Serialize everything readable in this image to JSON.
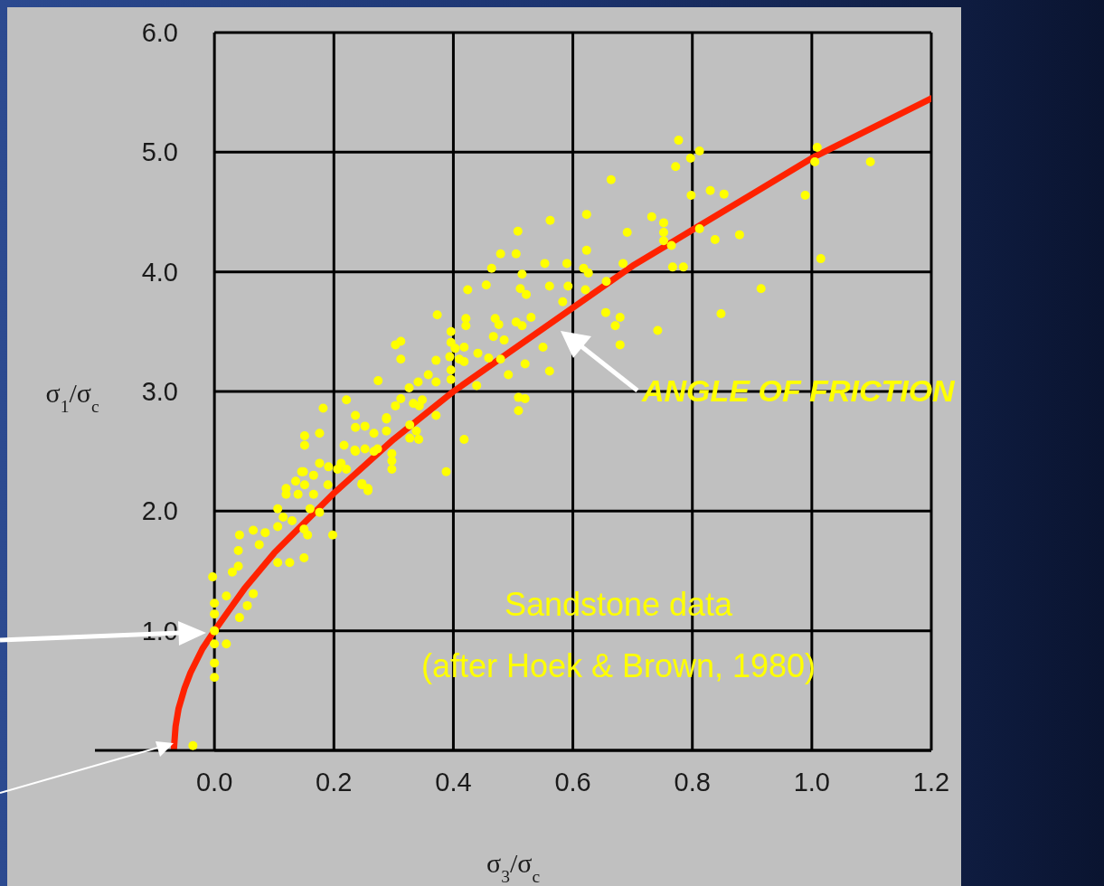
{
  "chart_data": {
    "type": "scatter",
    "xlabel": "σ$_{3}$/σ$_{c}$",
    "ylabel": "σ$_{1}$/σ$_{c}$",
    "xlim": [
      -0.2,
      1.2
    ],
    "xticks": [
      {
        "value": 0,
        "label": "0.0"
      },
      0.2,
      0.4,
      0.6,
      0.8,
      {
        "value": 1,
        "label": "1.0"
      },
      1.2
    ],
    "ylim": [
      0,
      6
    ],
    "yticks": [
      {
        "value": 0,
        "label": null
      },
      {
        "value": 1,
        "label": "1.0"
      },
      {
        "value": 2,
        "label": "2.0"
      },
      {
        "value": 3,
        "label": "3.0"
      },
      {
        "value": 4,
        "label": "4.0"
      },
      {
        "value": 5,
        "label": "5.0"
      },
      {
        "value": 6,
        "label": "6.0"
      }
    ],
    "grid": true,
    "marker": "circle",
    "series": [
      {
        "color": "#ffff00",
        "x": [
          -0.036,
          -0.003,
          0,
          0,
          0,
          0,
          0,
          0,
          0.02,
          0.02,
          0.042,
          0.055,
          0.065,
          0.03,
          0.04,
          0.04,
          0.042,
          0.065,
          0.075,
          0.085,
          0.106,
          0.115,
          0.126,
          0.106,
          0.15,
          0.156,
          0.15,
          0.13,
          0.106,
          0.12,
          0.14,
          0.151,
          0.136,
          0.149,
          0.166,
          0.176,
          0.191,
          0.19,
          0.166,
          0.16,
          0.176,
          0.198,
          0.151,
          0.151,
          0.176,
          0.182,
          0.206,
          0.221,
          0.236,
          0.236,
          0.217,
          0.236,
          0.247,
          0.257,
          0.267,
          0.288,
          0.297,
          0.562,
          0.508,
          0.479,
          0.505,
          0.464,
          0.553,
          0.59,
          0.515,
          0.455,
          0.424,
          0.512,
          0.522,
          0.561,
          0.592,
          0.583,
          0.373,
          0.421,
          0.421,
          0.47,
          0.476,
          0.505,
          0.515,
          0.53,
          0.312,
          0.303,
          0.312,
          0.396,
          0.396,
          0.403,
          0.418,
          0.441,
          0.459,
          0.467,
          0.485,
          0.371,
          0.394,
          0.41,
          0.418,
          0.479,
          0.55,
          0.52,
          0.561,
          0.492,
          0.396,
          0.396,
          0.358,
          0.274,
          0.341,
          0.371,
          0.326,
          0.439,
          0.509,
          0.52,
          0.509,
          0.312,
          0.303,
          0.333,
          0.348,
          0.343,
          0.371,
          0.288,
          0.252,
          0.267,
          0.288,
          0.327,
          0.338,
          0.327,
          0.342,
          0.418,
          0.235,
          0.252,
          0.273,
          0.297,
          0.297,
          0.388,
          0.146,
          0.212,
          0.221,
          0.247,
          0.257,
          0.12,
          0.777,
          0.812,
          0.797,
          0.772,
          1.009,
          1.005,
          1.098,
          0.664,
          0.798,
          0.83,
          0.853,
          0.989,
          0.623,
          0.732,
          0.691,
          0.752,
          0.752,
          0.752,
          0.765,
          0.812,
          0.838,
          0.879,
          1.015,
          0.623,
          0.618,
          0.626,
          0.684,
          0.767,
          0.785,
          0.621,
          0.656,
          0.655,
          0.679,
          0.671,
          0.742,
          0.679,
          0.848,
          0.915
        ],
        "values": [
          0.04,
          1.45,
          1.23,
          1.14,
          1.0,
          0.89,
          0.73,
          0.61,
          0.89,
          1.29,
          1.11,
          1.21,
          1.31,
          1.49,
          1.54,
          1.67,
          1.8,
          1.84,
          1.72,
          1.82,
          1.87,
          1.95,
          1.57,
          1.57,
          1.61,
          1.8,
          1.85,
          1.92,
          2.02,
          2.14,
          2.14,
          2.22,
          2.25,
          2.33,
          2.3,
          2.4,
          2.37,
          2.22,
          2.14,
          2.02,
          1.99,
          1.8,
          2.63,
          2.55,
          2.65,
          2.86,
          2.35,
          2.93,
          2.8,
          2.7,
          2.55,
          2.5,
          2.22,
          2.17,
          2.5,
          2.78,
          2.48,
          4.43,
          4.34,
          4.15,
          4.15,
          4.03,
          4.07,
          4.07,
          3.98,
          3.89,
          3.85,
          3.86,
          3.81,
          3.88,
          3.88,
          3.75,
          3.64,
          3.61,
          3.55,
          3.61,
          3.56,
          3.58,
          3.55,
          3.62,
          3.42,
          3.39,
          3.27,
          3.5,
          3.41,
          3.36,
          3.37,
          3.32,
          3.28,
          3.46,
          3.43,
          3.26,
          3.29,
          3.27,
          3.25,
          3.27,
          3.37,
          3.23,
          3.17,
          3.14,
          3.18,
          3.1,
          3.14,
          3.09,
          3.08,
          3.08,
          3.03,
          3.05,
          2.95,
          2.94,
          2.84,
          2.94,
          2.88,
          2.9,
          2.93,
          2.88,
          2.8,
          2.77,
          2.71,
          2.65,
          2.67,
          2.72,
          2.67,
          2.61,
          2.6,
          2.6,
          2.51,
          2.52,
          2.52,
          2.42,
          2.35,
          2.33,
          2.33,
          2.4,
          2.35,
          2.23,
          2.19,
          2.19,
          5.1,
          5.01,
          4.95,
          4.88,
          5.04,
          4.92,
          4.92,
          4.77,
          4.64,
          4.68,
          4.65,
          4.64,
          4.48,
          4.46,
          4.33,
          4.41,
          4.33,
          4.26,
          4.22,
          4.36,
          4.27,
          4.31,
          4.11,
          4.18,
          4.03,
          3.99,
          4.07,
          4.04,
          4.04,
          3.85,
          3.92,
          3.66,
          3.62,
          3.55,
          3.51,
          3.39,
          3.65,
          3.86
        ]
      },
      {
        "type": "line",
        "color": "#ff2200",
        "marker": "none",
        "x": [
          -0.068,
          -0.065,
          -0.06,
          -0.05,
          -0.04,
          -0.02,
          0,
          0.05,
          0.1,
          0.2,
          0.3,
          0.4,
          0.5,
          0.6,
          0.7,
          0.8,
          0.9,
          1.0,
          1.1,
          1.2
        ],
        "values": [
          0,
          0.2,
          0.35,
          0.52,
          0.65,
          0.85,
          1.0,
          1.35,
          1.65,
          2.15,
          2.6,
          3.0,
          3.35,
          3.7,
          4.05,
          4.35,
          4.65,
          4.95,
          5.2,
          5.45
        ]
      }
    ],
    "annotations": [
      "ANGLE OF FRICTION",
      "Sandstone data",
      "(after Hoek & Brown, 1980)"
    ]
  }
}
